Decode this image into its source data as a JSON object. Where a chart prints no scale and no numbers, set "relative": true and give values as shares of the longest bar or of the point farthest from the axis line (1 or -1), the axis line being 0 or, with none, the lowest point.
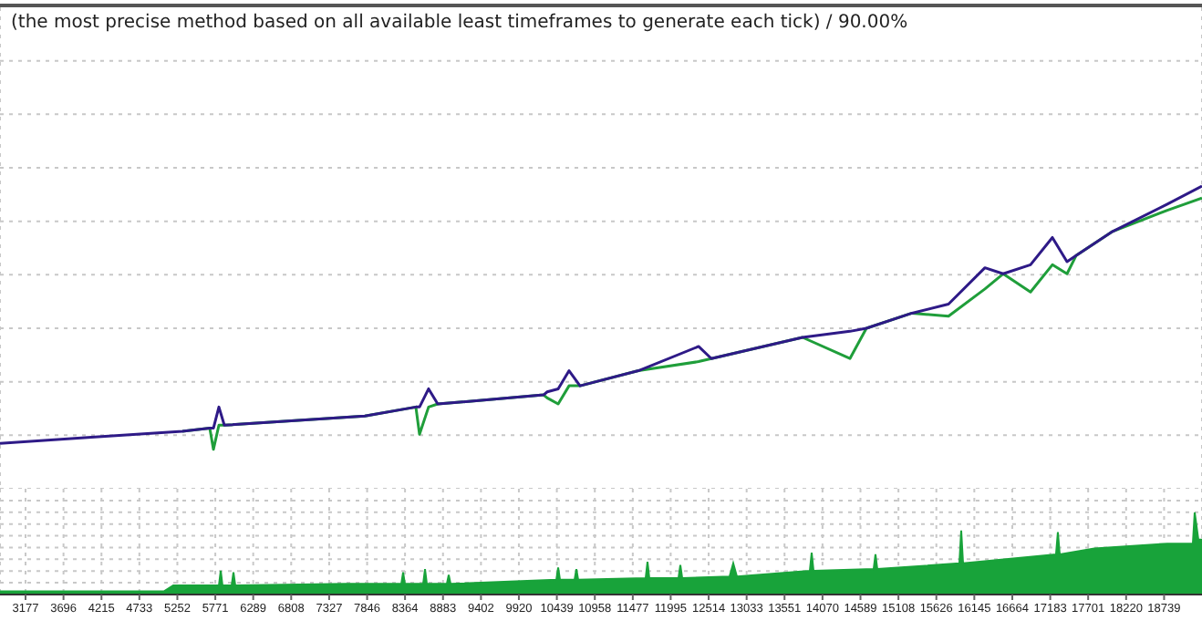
{
  "chart_data": [
    {
      "type": "line",
      "title": "(the most precise method based on all available least timeframes to generate each tick) / 90.00%",
      "relative": true,
      "grid": true,
      "tick_labels": false,
      "xlim": [
        2828,
        19257
      ],
      "xticks": [
        3177,
        3696,
        4215,
        4733,
        5252,
        5771,
        6289,
        6808,
        7327,
        7846,
        8364,
        8883,
        9402,
        9920,
        10439,
        10958,
        11477,
        11995,
        12514,
        13033,
        13551,
        14070,
        14589,
        15108,
        15626,
        16145,
        16664,
        17183,
        17701,
        18220,
        18739
      ],
      "x": [
        2828,
        4075,
        5321,
        5695,
        5745,
        5820,
        5894,
        7814,
        8512,
        8562,
        8686,
        8811,
        10257,
        10307,
        10457,
        10606,
        10756,
        11554,
        12376,
        12551,
        13797,
        14445,
        14670,
        15293,
        15792,
        16290,
        16539,
        16913,
        17212,
        17412,
        17536,
        18035,
        18783,
        19257
      ],
      "series": [
        {
          "color": "#1f9e3a",
          "values": [
            null,
            null,
            0.19,
            0.2,
            0.13,
            0.21,
            0.21,
            0.24,
            0.27,
            0.18,
            0.27,
            0.28,
            0.31,
            0.3,
            0.28,
            0.34,
            0.34,
            0.39,
            0.42,
            0.43,
            0.5,
            0.43,
            0.53,
            0.58,
            0.57,
            0.66,
            0.71,
            0.65,
            0.74,
            0.71,
            0.77,
            0.85,
            0.92,
            0.96
          ]
        },
        {
          "color": "#2e1a87",
          "values": [
            0.15,
            0.17,
            0.19,
            0.2,
            0.2,
            0.27,
            0.21,
            0.24,
            0.27,
            0.27,
            0.33,
            0.28,
            0.31,
            0.32,
            0.33,
            0.39,
            0.34,
            0.39,
            0.47,
            0.43,
            0.5,
            0.52,
            0.53,
            0.58,
            0.61,
            0.73,
            0.71,
            0.74,
            0.83,
            0.75,
            0.77,
            0.85,
            0.94,
            1.0
          ]
        }
      ]
    },
    {
      "type": "area",
      "relative": true,
      "grid": true,
      "tick_labels": "x",
      "xlim": [
        2828,
        19257
      ],
      "xticks": [
        3177,
        3696,
        4215,
        4733,
        5252,
        5771,
        6289,
        6808,
        7327,
        7846,
        8364,
        8883,
        9402,
        9920,
        10439,
        10958,
        11477,
        11995,
        12514,
        13033,
        13551,
        14070,
        14589,
        15108,
        15626,
        16145,
        16664,
        17183,
        17701,
        18220,
        18739
      ],
      "x": [
        2828,
        5072,
        5196,
        5820,
        5845,
        5869,
        5994,
        6019,
        6044,
        7565,
        8313,
        8338,
        8362,
        8612,
        8637,
        8662,
        8936,
        8961,
        8986,
        10432,
        10457,
        10482,
        10681,
        10706,
        10731,
        11653,
        11678,
        11703,
        12102,
        12127,
        12152,
        12800,
        12850,
        12900,
        13897,
        13922,
        13947,
        14769,
        14794,
        14819,
        15941,
        15966,
        15991,
        17262,
        17287,
        17312,
        17786,
        18783,
        19132,
        19157,
        19207,
        19257
      ],
      "series": [
        {
          "color": "#18a33a",
          "values": [
            0.04,
            0.04,
            0.11,
            0.11,
            0.29,
            0.11,
            0.11,
            0.27,
            0.11,
            0.13,
            0.13,
            0.27,
            0.13,
            0.13,
            0.31,
            0.13,
            0.13,
            0.24,
            0.13,
            0.18,
            0.33,
            0.18,
            0.18,
            0.31,
            0.18,
            0.2,
            0.4,
            0.2,
            0.2,
            0.36,
            0.2,
            0.22,
            0.38,
            0.22,
            0.29,
            0.51,
            0.29,
            0.31,
            0.49,
            0.31,
            0.38,
            0.78,
            0.38,
            0.49,
            0.76,
            0.49,
            0.56,
            0.62,
            0.62,
            1,
            0.67,
            0.67
          ]
        }
      ]
    }
  ]
}
